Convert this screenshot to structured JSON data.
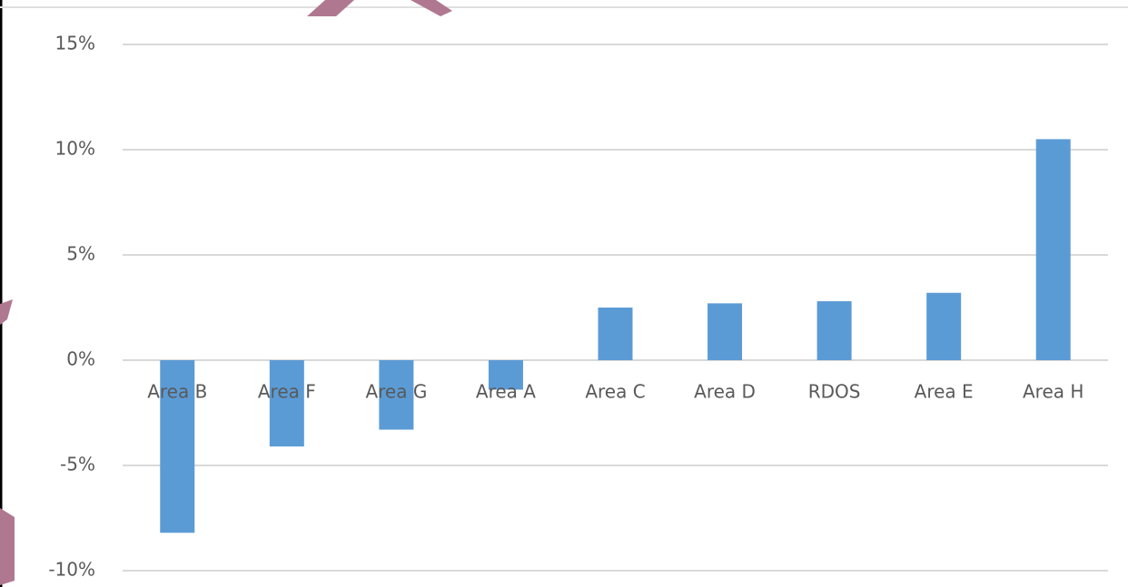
{
  "chart_data": {
    "type": "bar",
    "categories": [
      "Area B",
      "Area F",
      "Area G",
      "Area A",
      "Area C",
      "Area D",
      "RDOS",
      "Area E",
      "Area H"
    ],
    "values": [
      -8.2,
      -4.1,
      -3.3,
      -1.4,
      2.5,
      2.7,
      2.8,
      3.2,
      10.5
    ],
    "color": "#5b9bd5",
    "ylim": [
      -10,
      15
    ],
    "yticks": [
      {
        "value": -10,
        "label": "-10%"
      },
      {
        "value": -5,
        "label": "-5%"
      },
      {
        "value": 0,
        "label": "0%"
      },
      {
        "value": 5,
        "label": "5%"
      },
      {
        "value": 10,
        "label": "10%"
      },
      {
        "value": 15,
        "label": "15%"
      }
    ],
    "grid": true
  }
}
